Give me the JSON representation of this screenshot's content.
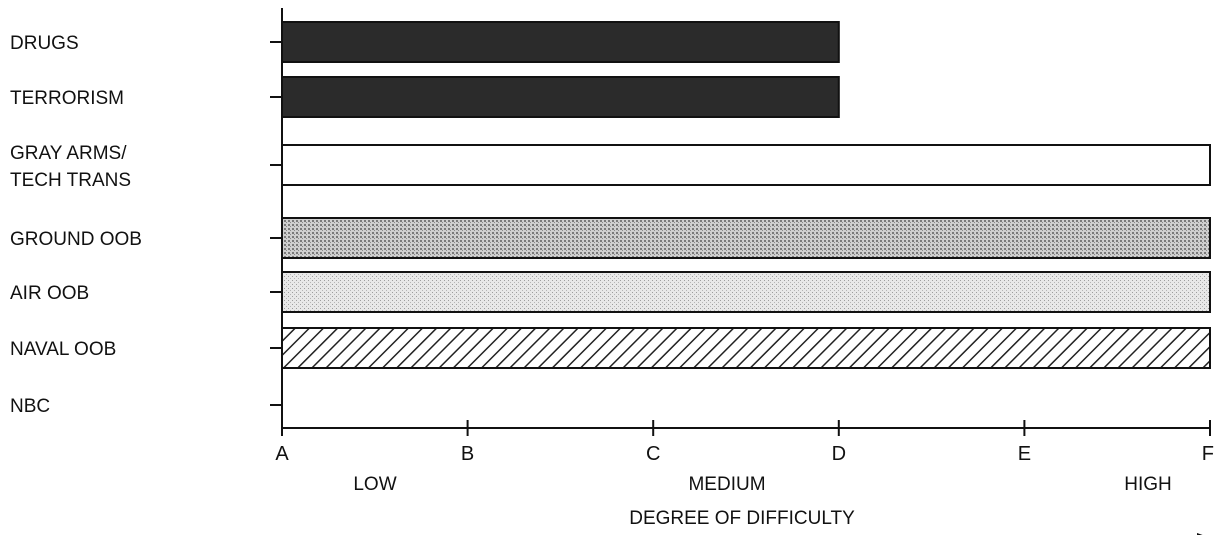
{
  "chart_data": {
    "type": "bar",
    "orientation": "horizontal",
    "title": "",
    "categories": [
      [
        "DRUGS"
      ],
      [
        "TERRORISM"
      ],
      [
        "GRAY ARMS/",
        "TECH TRANS"
      ],
      [
        "GROUND OOB"
      ],
      [
        "AIR OOB"
      ],
      [
        "NAVAL OOB"
      ],
      [
        "NBC"
      ]
    ],
    "values": [
      3.0,
      3.0,
      5.0,
      5.0,
      5.0,
      5.0,
      0
    ],
    "bar_styles": [
      "dark",
      "dark",
      "white",
      "dense-stipple",
      "light-stipple",
      "hatched",
      "none"
    ],
    "x_ticks": [
      "A",
      "B",
      "C",
      "D",
      "E",
      "F"
    ],
    "xlim": [
      0,
      5
    ],
    "band_labels": [
      "LOW",
      "MEDIUM",
      "HIGH"
    ],
    "xlabel": "DEGREE OF DIFFICULTY",
    "colors": {
      "dark": "#2b2b2b",
      "outline": "#111111",
      "stipple": "#9a9a9a",
      "light_stipple": "#cfcfcf"
    }
  }
}
